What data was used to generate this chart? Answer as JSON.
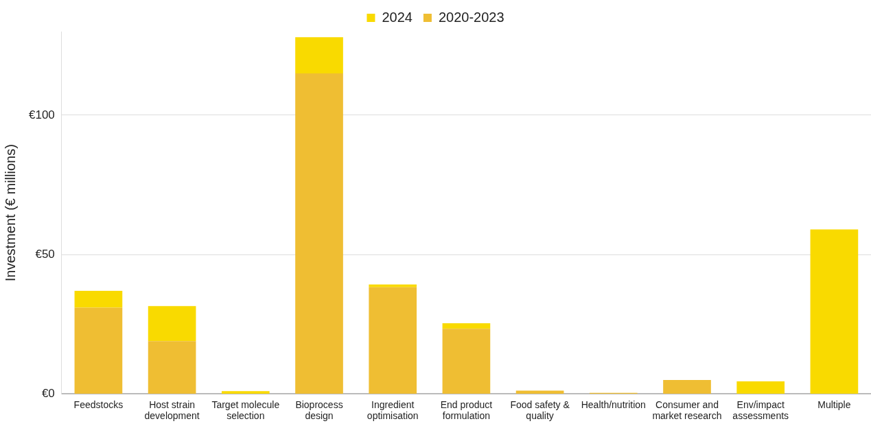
{
  "chart_data": {
    "type": "bar",
    "stacked": true,
    "ylabel": "Investment (€ millions)",
    "categories": [
      "Feedstocks",
      "Host strain development",
      "Target molecule selection",
      "Bioprocess design",
      "Ingredient optimisation",
      "End product formulation",
      "Food safety & quality",
      "Health/nutrition",
      "Consumer and market research",
      "Env/impact assessments",
      "Multiple"
    ],
    "series": [
      {
        "name": "2020-2023",
        "color": "#efbe33",
        "values": [
          31,
          19,
          null,
          115,
          38.3,
          23.4,
          1.2,
          0.4,
          5,
          0,
          0
        ]
      },
      {
        "name": "2024",
        "color": "#f9da00",
        "values": [
          6,
          12.5,
          1,
          13,
          1,
          2,
          0,
          0,
          0,
          4.5,
          59
        ]
      }
    ],
    "ylim": [
      0,
      130
    ],
    "yticks": [
      {
        "value": 0,
        "label": "€0"
      },
      {
        "value": 50,
        "label": "€50"
      },
      {
        "value": 100,
        "label": "€100"
      }
    ],
    "grid": "y",
    "legend": "top"
  }
}
